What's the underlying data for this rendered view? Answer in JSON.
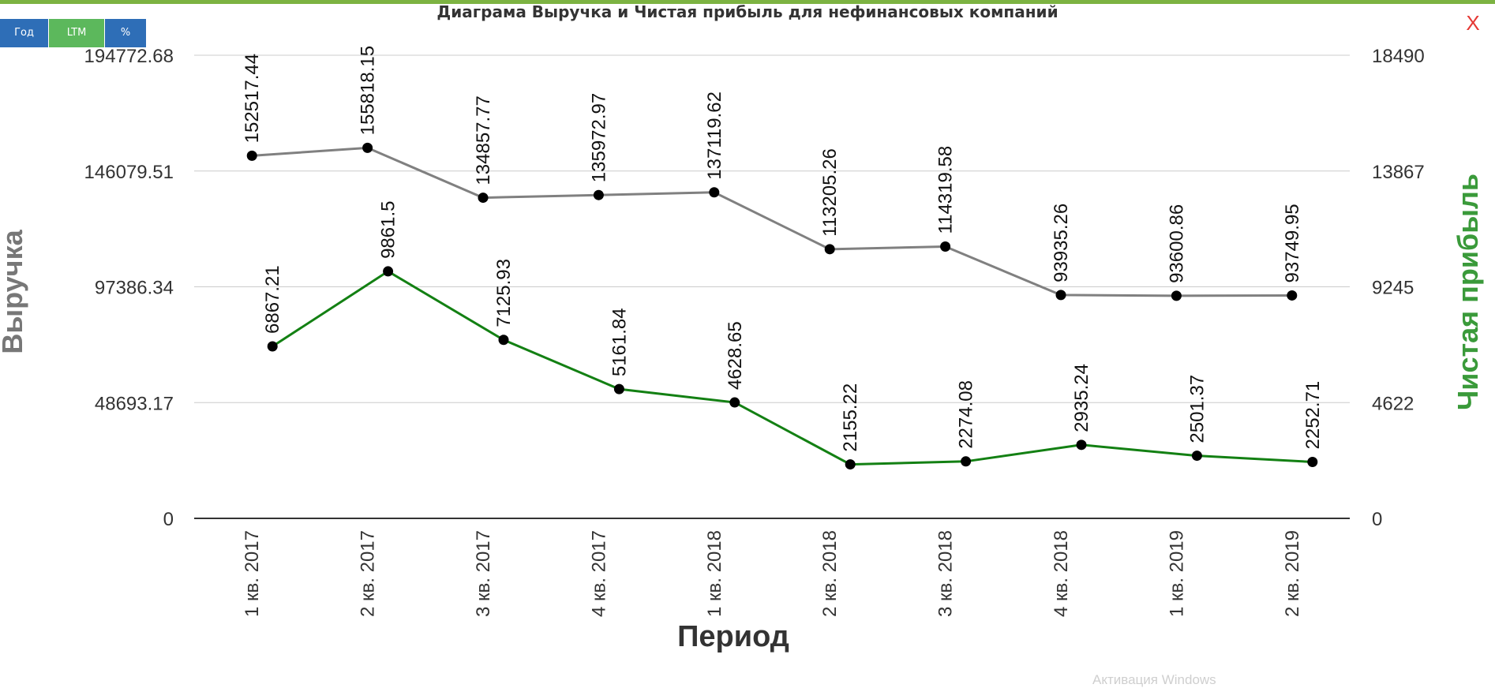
{
  "toolbar": {
    "buttons": [
      {
        "label": "Год",
        "color": "#2e6eb7"
      },
      {
        "label": "LTM",
        "color": "#5cb85c"
      },
      {
        "label": "%",
        "color": "#2e6eb7"
      }
    ]
  },
  "close_label": "X",
  "watermark": "Активация Windows",
  "chart_data": {
    "type": "line",
    "title": "Диаграма Выручка и Чистая прибыль для нефинансовых компаний",
    "xlabel": "Период",
    "ylabel_left": "Выручка",
    "ylabel_right": "Чистая прибыль",
    "categories": [
      "1 кв. 2017",
      "2 кв. 2017",
      "3 кв. 2017",
      "4 кв. 2017",
      "1 кв. 2018",
      "2 кв. 2018",
      "3 кв. 2018",
      "4 кв. 2018",
      "1 кв. 2019",
      "2 кв. 2019"
    ],
    "y_left_ticks": [
      "0",
      "48693.17",
      "97386.34",
      "146079.51",
      "194772.68"
    ],
    "y_left_range": [
      0,
      194772.68
    ],
    "y_right_ticks": [
      "0",
      "4622",
      "9245",
      "13867",
      "18490"
    ],
    "y_right_range": [
      0,
      18490
    ],
    "grid": true,
    "series": [
      {
        "axis": "left",
        "color": "#808080",
        "values": [
          152517.44,
          155818.15,
          134857.77,
          135972.97,
          137119.62,
          113205.26,
          114319.58,
          93935.26,
          93600.86,
          93749.95
        ],
        "labels": [
          "152517.44",
          "155818.15",
          "134857.77",
          "135972.97",
          "137119.62",
          "113205.26",
          "114319.58",
          "93935.26",
          "93600.86",
          "93749.95"
        ]
      },
      {
        "axis": "right",
        "color": "#138013",
        "values": [
          6867.21,
          9861.5,
          7125.93,
          5161.84,
          4628.65,
          2155.22,
          2274.08,
          2935.24,
          2501.37,
          2252.71
        ],
        "labels": [
          "6867.21",
          "9861.5",
          "7125.93",
          "5161.84",
          "4628.65",
          "2155.22",
          "2274.08",
          "2935.24",
          "2501.37",
          "2252.71"
        ]
      }
    ],
    "colors": {
      "left_axis_label": "#777777",
      "right_axis_label": "#3a9a3a",
      "tick_text": "#333333",
      "grid": "#cccccc"
    }
  }
}
